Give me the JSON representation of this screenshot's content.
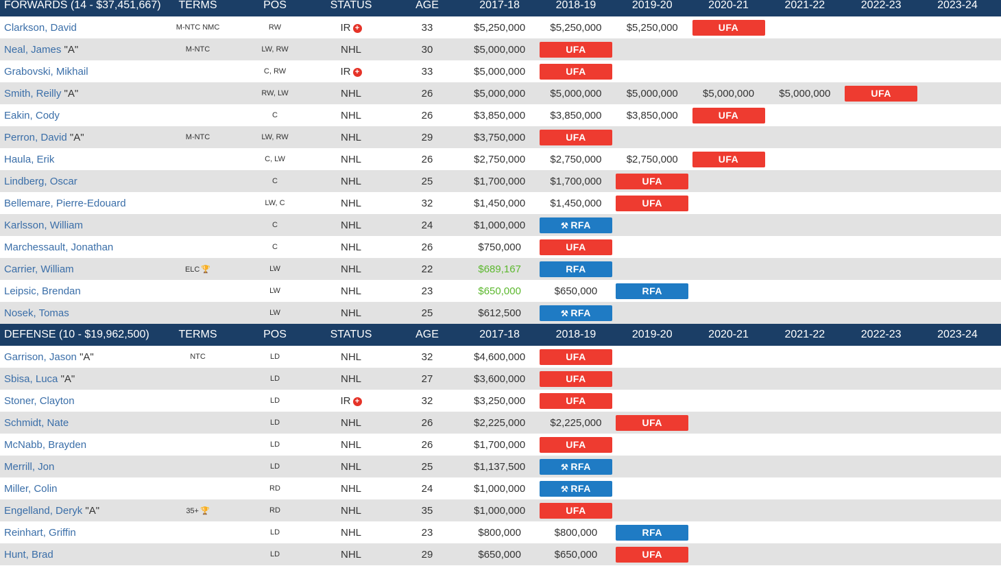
{
  "columns": [
    "TERMS",
    "POS",
    "STATUS",
    "AGE",
    "2017-18",
    "2018-19",
    "2019-20",
    "2020-21",
    "2021-22",
    "2022-23",
    "2023-24"
  ],
  "forwards": {
    "title": "FORWARDS (14 - $37,451,667)",
    "players": [
      {
        "name": "Clarkson, David",
        "tag": "",
        "terms": "M-NTC NMC",
        "terms_icon": "",
        "pos": "RW",
        "status": "IR",
        "status_icon": "ir",
        "age": "33",
        "cells": [
          {
            "t": "text",
            "v": "$5,250,000"
          },
          {
            "t": "text",
            "v": "$5,250,000"
          },
          {
            "t": "text",
            "v": "$5,250,000"
          },
          {
            "t": "ufa",
            "v": "UFA"
          },
          {
            "t": "empty",
            "v": ""
          },
          {
            "t": "empty",
            "v": ""
          },
          {
            "t": "empty",
            "v": ""
          }
        ]
      },
      {
        "name": "Neal, James",
        "tag": "\"A\"",
        "terms": "M-NTC",
        "terms_icon": "",
        "pos": "LW, RW",
        "status": "NHL",
        "status_icon": "",
        "age": "30",
        "cells": [
          {
            "t": "text",
            "v": "$5,000,000"
          },
          {
            "t": "ufa",
            "v": "UFA"
          },
          {
            "t": "empty",
            "v": ""
          },
          {
            "t": "empty",
            "v": ""
          },
          {
            "t": "empty",
            "v": ""
          },
          {
            "t": "empty",
            "v": ""
          },
          {
            "t": "empty",
            "v": ""
          }
        ]
      },
      {
        "name": "Grabovski, Mikhail",
        "tag": "",
        "terms": "",
        "terms_icon": "",
        "pos": "C, RW",
        "status": "IR",
        "status_icon": "ir",
        "age": "33",
        "cells": [
          {
            "t": "text",
            "v": "$5,000,000"
          },
          {
            "t": "ufa",
            "v": "UFA"
          },
          {
            "t": "empty",
            "v": ""
          },
          {
            "t": "empty",
            "v": ""
          },
          {
            "t": "empty",
            "v": ""
          },
          {
            "t": "empty",
            "v": ""
          },
          {
            "t": "empty",
            "v": ""
          }
        ]
      },
      {
        "name": "Smith, Reilly",
        "tag": "\"A\"",
        "terms": "",
        "terms_icon": "",
        "pos": "RW, LW",
        "status": "NHL",
        "status_icon": "",
        "age": "26",
        "cells": [
          {
            "t": "text",
            "v": "$5,000,000"
          },
          {
            "t": "text",
            "v": "$5,000,000"
          },
          {
            "t": "text",
            "v": "$5,000,000"
          },
          {
            "t": "text",
            "v": "$5,000,000"
          },
          {
            "t": "text",
            "v": "$5,000,000"
          },
          {
            "t": "ufa",
            "v": "UFA"
          },
          {
            "t": "empty",
            "v": ""
          }
        ]
      },
      {
        "name": "Eakin, Cody",
        "tag": "",
        "terms": "",
        "terms_icon": "",
        "pos": "C",
        "status": "NHL",
        "status_icon": "",
        "age": "26",
        "cells": [
          {
            "t": "text",
            "v": "$3,850,000"
          },
          {
            "t": "text",
            "v": "$3,850,000"
          },
          {
            "t": "text",
            "v": "$3,850,000"
          },
          {
            "t": "ufa",
            "v": "UFA"
          },
          {
            "t": "empty",
            "v": ""
          },
          {
            "t": "empty",
            "v": ""
          },
          {
            "t": "empty",
            "v": ""
          }
        ]
      },
      {
        "name": "Perron, David",
        "tag": "\"A\"",
        "terms": "M-NTC",
        "terms_icon": "",
        "pos": "LW, RW",
        "status": "NHL",
        "status_icon": "",
        "age": "29",
        "cells": [
          {
            "t": "text",
            "v": "$3,750,000"
          },
          {
            "t": "ufa",
            "v": "UFA"
          },
          {
            "t": "empty",
            "v": ""
          },
          {
            "t": "empty",
            "v": ""
          },
          {
            "t": "empty",
            "v": ""
          },
          {
            "t": "empty",
            "v": ""
          },
          {
            "t": "empty",
            "v": ""
          }
        ]
      },
      {
        "name": "Haula, Erik",
        "tag": "",
        "terms": "",
        "terms_icon": "",
        "pos": "C, LW",
        "status": "NHL",
        "status_icon": "",
        "age": "26",
        "cells": [
          {
            "t": "text",
            "v": "$2,750,000"
          },
          {
            "t": "text",
            "v": "$2,750,000"
          },
          {
            "t": "text",
            "v": "$2,750,000"
          },
          {
            "t": "ufa",
            "v": "UFA"
          },
          {
            "t": "empty",
            "v": ""
          },
          {
            "t": "empty",
            "v": ""
          },
          {
            "t": "empty",
            "v": ""
          }
        ]
      },
      {
        "name": "Lindberg, Oscar",
        "tag": "",
        "terms": "",
        "terms_icon": "",
        "pos": "C",
        "status": "NHL",
        "status_icon": "",
        "age": "25",
        "cells": [
          {
            "t": "text",
            "v": "$1,700,000"
          },
          {
            "t": "text",
            "v": "$1,700,000"
          },
          {
            "t": "ufa",
            "v": "UFA"
          },
          {
            "t": "empty",
            "v": ""
          },
          {
            "t": "empty",
            "v": ""
          },
          {
            "t": "empty",
            "v": ""
          },
          {
            "t": "empty",
            "v": ""
          }
        ]
      },
      {
        "name": "Bellemare, Pierre-Edouard",
        "tag": "",
        "terms": "",
        "terms_icon": "",
        "pos": "LW, C",
        "status": "NHL",
        "status_icon": "",
        "age": "32",
        "cells": [
          {
            "t": "text",
            "v": "$1,450,000"
          },
          {
            "t": "text",
            "v": "$1,450,000"
          },
          {
            "t": "ufa",
            "v": "UFA"
          },
          {
            "t": "empty",
            "v": ""
          },
          {
            "t": "empty",
            "v": ""
          },
          {
            "t": "empty",
            "v": ""
          },
          {
            "t": "empty",
            "v": ""
          }
        ]
      },
      {
        "name": "Karlsson, William",
        "tag": "",
        "terms": "",
        "terms_icon": "",
        "pos": "C",
        "status": "NHL",
        "status_icon": "",
        "age": "24",
        "cells": [
          {
            "t": "text",
            "v": "$1,000,000"
          },
          {
            "t": "rfa-arb",
            "v": "RFA"
          },
          {
            "t": "empty",
            "v": ""
          },
          {
            "t": "empty",
            "v": ""
          },
          {
            "t": "empty",
            "v": ""
          },
          {
            "t": "empty",
            "v": ""
          },
          {
            "t": "empty",
            "v": ""
          }
        ]
      },
      {
        "name": "Marchessault, Jonathan",
        "tag": "",
        "terms": "",
        "terms_icon": "",
        "pos": "C",
        "status": "NHL",
        "status_icon": "",
        "age": "26",
        "cells": [
          {
            "t": "text",
            "v": "$750,000"
          },
          {
            "t": "ufa",
            "v": "UFA"
          },
          {
            "t": "empty",
            "v": ""
          },
          {
            "t": "empty",
            "v": ""
          },
          {
            "t": "empty",
            "v": ""
          },
          {
            "t": "empty",
            "v": ""
          },
          {
            "t": "empty",
            "v": ""
          }
        ]
      },
      {
        "name": "Carrier, William",
        "tag": "",
        "terms": "ELC",
        "terms_icon": "trophy",
        "pos": "LW",
        "status": "NHL",
        "status_icon": "",
        "age": "22",
        "cells": [
          {
            "t": "green",
            "v": "$689,167"
          },
          {
            "t": "rfa",
            "v": "RFA"
          },
          {
            "t": "empty",
            "v": ""
          },
          {
            "t": "empty",
            "v": ""
          },
          {
            "t": "empty",
            "v": ""
          },
          {
            "t": "empty",
            "v": ""
          },
          {
            "t": "empty",
            "v": ""
          }
        ]
      },
      {
        "name": "Leipsic, Brendan",
        "tag": "",
        "terms": "",
        "terms_icon": "",
        "pos": "LW",
        "status": "NHL",
        "status_icon": "",
        "age": "23",
        "cells": [
          {
            "t": "green",
            "v": "$650,000"
          },
          {
            "t": "text",
            "v": "$650,000"
          },
          {
            "t": "rfa",
            "v": "RFA"
          },
          {
            "t": "empty",
            "v": ""
          },
          {
            "t": "empty",
            "v": ""
          },
          {
            "t": "empty",
            "v": ""
          },
          {
            "t": "empty",
            "v": ""
          }
        ]
      },
      {
        "name": "Nosek, Tomas",
        "tag": "",
        "terms": "",
        "terms_icon": "",
        "pos": "LW",
        "status": "NHL",
        "status_icon": "",
        "age": "25",
        "cells": [
          {
            "t": "text",
            "v": "$612,500"
          },
          {
            "t": "rfa-arb",
            "v": "RFA"
          },
          {
            "t": "empty",
            "v": ""
          },
          {
            "t": "empty",
            "v": ""
          },
          {
            "t": "empty",
            "v": ""
          },
          {
            "t": "empty",
            "v": ""
          },
          {
            "t": "empty",
            "v": ""
          }
        ]
      }
    ]
  },
  "defense": {
    "title": "DEFENSE (10 - $19,962,500)",
    "players": [
      {
        "name": "Garrison, Jason",
        "tag": "\"A\"",
        "terms": "NTC",
        "terms_icon": "",
        "pos": "LD",
        "status": "NHL",
        "status_icon": "",
        "age": "32",
        "cells": [
          {
            "t": "text",
            "v": "$4,600,000"
          },
          {
            "t": "ufa",
            "v": "UFA"
          },
          {
            "t": "empty",
            "v": ""
          },
          {
            "t": "empty",
            "v": ""
          },
          {
            "t": "empty",
            "v": ""
          },
          {
            "t": "empty",
            "v": ""
          },
          {
            "t": "empty",
            "v": ""
          }
        ]
      },
      {
        "name": "Sbisa, Luca",
        "tag": "\"A\"",
        "terms": "",
        "terms_icon": "",
        "pos": "LD",
        "status": "NHL",
        "status_icon": "",
        "age": "27",
        "cells": [
          {
            "t": "text",
            "v": "$3,600,000"
          },
          {
            "t": "ufa",
            "v": "UFA"
          },
          {
            "t": "empty",
            "v": ""
          },
          {
            "t": "empty",
            "v": ""
          },
          {
            "t": "empty",
            "v": ""
          },
          {
            "t": "empty",
            "v": ""
          },
          {
            "t": "empty",
            "v": ""
          }
        ]
      },
      {
        "name": "Stoner, Clayton",
        "tag": "",
        "terms": "",
        "terms_icon": "",
        "pos": "LD",
        "status": "IR",
        "status_icon": "ir",
        "age": "32",
        "cells": [
          {
            "t": "text",
            "v": "$3,250,000"
          },
          {
            "t": "ufa",
            "v": "UFA"
          },
          {
            "t": "empty",
            "v": ""
          },
          {
            "t": "empty",
            "v": ""
          },
          {
            "t": "empty",
            "v": ""
          },
          {
            "t": "empty",
            "v": ""
          },
          {
            "t": "empty",
            "v": ""
          }
        ]
      },
      {
        "name": "Schmidt, Nate",
        "tag": "",
        "terms": "",
        "terms_icon": "",
        "pos": "LD",
        "status": "NHL",
        "status_icon": "",
        "age": "26",
        "cells": [
          {
            "t": "text",
            "v": "$2,225,000"
          },
          {
            "t": "text",
            "v": "$2,225,000"
          },
          {
            "t": "ufa",
            "v": "UFA"
          },
          {
            "t": "empty",
            "v": ""
          },
          {
            "t": "empty",
            "v": ""
          },
          {
            "t": "empty",
            "v": ""
          },
          {
            "t": "empty",
            "v": ""
          }
        ]
      },
      {
        "name": "McNabb, Brayden",
        "tag": "",
        "terms": "",
        "terms_icon": "",
        "pos": "LD",
        "status": "NHL",
        "status_icon": "",
        "age": "26",
        "cells": [
          {
            "t": "text",
            "v": "$1,700,000"
          },
          {
            "t": "ufa",
            "v": "UFA"
          },
          {
            "t": "empty",
            "v": ""
          },
          {
            "t": "empty",
            "v": ""
          },
          {
            "t": "empty",
            "v": ""
          },
          {
            "t": "empty",
            "v": ""
          },
          {
            "t": "empty",
            "v": ""
          }
        ]
      },
      {
        "name": "Merrill, Jon",
        "tag": "",
        "terms": "",
        "terms_icon": "",
        "pos": "LD",
        "status": "NHL",
        "status_icon": "",
        "age": "25",
        "cells": [
          {
            "t": "text",
            "v": "$1,137,500"
          },
          {
            "t": "rfa-arb",
            "v": "RFA"
          },
          {
            "t": "empty",
            "v": ""
          },
          {
            "t": "empty",
            "v": ""
          },
          {
            "t": "empty",
            "v": ""
          },
          {
            "t": "empty",
            "v": ""
          },
          {
            "t": "empty",
            "v": ""
          }
        ]
      },
      {
        "name": "Miller, Colin",
        "tag": "",
        "terms": "",
        "terms_icon": "",
        "pos": "RD",
        "status": "NHL",
        "status_icon": "",
        "age": "24",
        "cells": [
          {
            "t": "text",
            "v": "$1,000,000"
          },
          {
            "t": "rfa-arb",
            "v": "RFA"
          },
          {
            "t": "empty",
            "v": ""
          },
          {
            "t": "empty",
            "v": ""
          },
          {
            "t": "empty",
            "v": ""
          },
          {
            "t": "empty",
            "v": ""
          },
          {
            "t": "empty",
            "v": ""
          }
        ]
      },
      {
        "name": "Engelland, Deryk",
        "tag": "\"A\"",
        "terms": "35+",
        "terms_icon": "trophy",
        "pos": "RD",
        "status": "NHL",
        "status_icon": "",
        "age": "35",
        "cells": [
          {
            "t": "text",
            "v": "$1,000,000"
          },
          {
            "t": "ufa",
            "v": "UFA"
          },
          {
            "t": "empty",
            "v": ""
          },
          {
            "t": "empty",
            "v": ""
          },
          {
            "t": "empty",
            "v": ""
          },
          {
            "t": "empty",
            "v": ""
          },
          {
            "t": "empty",
            "v": ""
          }
        ]
      },
      {
        "name": "Reinhart, Griffin",
        "tag": "",
        "terms": "",
        "terms_icon": "",
        "pos": "LD",
        "status": "NHL",
        "status_icon": "",
        "age": "23",
        "cells": [
          {
            "t": "text",
            "v": "$800,000"
          },
          {
            "t": "text",
            "v": "$800,000"
          },
          {
            "t": "rfa",
            "v": "RFA"
          },
          {
            "t": "empty",
            "v": ""
          },
          {
            "t": "empty",
            "v": ""
          },
          {
            "t": "empty",
            "v": ""
          },
          {
            "t": "empty",
            "v": ""
          }
        ]
      },
      {
        "name": "Hunt, Brad",
        "tag": "",
        "terms": "",
        "terms_icon": "",
        "pos": "LD",
        "status": "NHL",
        "status_icon": "",
        "age": "29",
        "cells": [
          {
            "t": "text",
            "v": "$650,000"
          },
          {
            "t": "text",
            "v": "$650,000"
          },
          {
            "t": "ufa",
            "v": "UFA"
          },
          {
            "t": "empty",
            "v": ""
          },
          {
            "t": "empty",
            "v": ""
          },
          {
            "t": "empty",
            "v": ""
          },
          {
            "t": "empty",
            "v": ""
          }
        ]
      }
    ]
  },
  "colors": {
    "header_bg": "#1b3e66",
    "ufa": "#ee3b30",
    "rfa": "#1f7bc4",
    "link": "#3a6ea8",
    "elc_value": "#5cb82e"
  },
  "icons": {
    "ir": "injured-reserve-icon",
    "trophy": "trophy-icon",
    "arb": "arbitration-icon"
  }
}
